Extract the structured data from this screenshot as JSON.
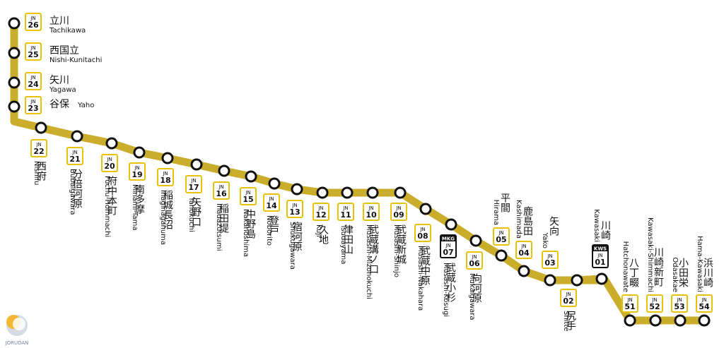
{
  "line_color": "#c9ad2b",
  "badge_border_color": "#e8c10a",
  "logo_text": "JORUDAN",
  "stations": [
    {
      "code": "26",
      "line": "JN",
      "jp": "立川",
      "en": "Tachikawa"
    },
    {
      "code": "25",
      "line": "JN",
      "jp": "西国立",
      "en": "Nishi-Kunitachi"
    },
    {
      "code": "24",
      "line": "JN",
      "jp": "矢川",
      "en": "Yagawa"
    },
    {
      "code": "23",
      "line": "JN",
      "jp": "谷保",
      "en": "Yaho"
    },
    {
      "code": "22",
      "line": "JN",
      "jp": "西府",
      "en": "Nishifu"
    },
    {
      "code": "21",
      "line": "JN",
      "jp": "分倍河原",
      "en": "Bubaigawara"
    },
    {
      "code": "20",
      "line": "JN",
      "jp": "府中本町",
      "en": "Fuchu-Hommachi"
    },
    {
      "code": "19",
      "line": "JN",
      "jp": "南多摩",
      "en": "Minami-Tama"
    },
    {
      "code": "18",
      "line": "JN",
      "jp": "稲城長沼",
      "en": "Inaginaganuma"
    },
    {
      "code": "17",
      "line": "JN",
      "jp": "矢野口",
      "en": "Yanokuchi"
    },
    {
      "code": "16",
      "line": "JN",
      "jp": "稲田堤",
      "en": "Inadazutsumi"
    },
    {
      "code": "15",
      "line": "JN",
      "jp": "中野島",
      "en": "Nakanoshima"
    },
    {
      "code": "14",
      "line": "JN",
      "jp": "登戸",
      "en": "Noborito"
    },
    {
      "code": "13",
      "line": "JN",
      "jp": "宿河原",
      "en": "Shukugawara"
    },
    {
      "code": "12",
      "line": "JN",
      "jp": "久地",
      "en": "Kuji"
    },
    {
      "code": "11",
      "line": "JN",
      "jp": "津田山",
      "en": "Tsudayama"
    },
    {
      "code": "10",
      "line": "JN",
      "jp": "武蔵溝ノ口",
      "en": "Musashi-Mizonokuchi"
    },
    {
      "code": "09",
      "line": "JN",
      "jp": "武蔵新城",
      "en": "Musashi-Shinjo"
    },
    {
      "code": "08",
      "line": "JN",
      "jp": "武蔵中原",
      "en": "Musashi-Nakahara"
    },
    {
      "code": "07",
      "line": "JN",
      "extra": "MKG",
      "jp": "武蔵小杉",
      "en": "Musashi-Kosugi"
    },
    {
      "code": "06",
      "line": "JN",
      "jp": "向河原",
      "en": "Mukaigawara"
    },
    {
      "code": "05",
      "line": "JN",
      "jp": "平間",
      "en": "Hirama"
    },
    {
      "code": "04",
      "line": "JN",
      "jp": "鹿島田",
      "en": "Kashimada"
    },
    {
      "code": "03",
      "line": "JN",
      "jp": "矢向",
      "en": "Yako"
    },
    {
      "code": "02",
      "line": "JN",
      "jp": "尻手",
      "en": "Shitte"
    },
    {
      "code": "01",
      "line": "JN",
      "extra": "KWS",
      "jp": "川崎",
      "en": "Kawasaki"
    },
    {
      "code": "51",
      "line": "JN",
      "jp": "八丁畷",
      "en": "Hatchonawate"
    },
    {
      "code": "52",
      "line": "JN",
      "jp": "川崎新町",
      "en": "Kawasaki-Shimmachi"
    },
    {
      "code": "53",
      "line": "JN",
      "jp": "小田栄",
      "en": "Odasakae"
    },
    {
      "code": "54",
      "line": "JN",
      "jp": "浜川崎",
      "en": "Hama-Kawasaki"
    }
  ]
}
